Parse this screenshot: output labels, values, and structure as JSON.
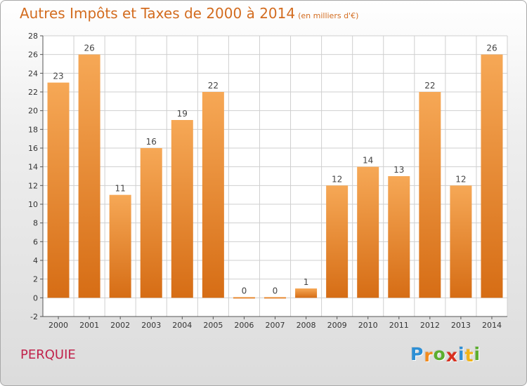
{
  "title": "Autres Impôts et Taxes de 2000 à 2014",
  "subtitle": "(en milliers d'€)",
  "location": "PERQUIE",
  "brand": {
    "letters": [
      "P",
      "r",
      "o",
      "x",
      "i",
      "t",
      "i"
    ],
    "colors": [
      "#2d8fd5",
      "#f28b1e",
      "#5cae2e",
      "#d8301f",
      "#2d8fd5",
      "#f0b418",
      "#5cae2e"
    ]
  },
  "colors": {
    "bar_light": "#f6a856",
    "bar_dark": "#d66d15",
    "title": "#d36c1f",
    "grid": "#cfcfcf"
  },
  "chart_data": {
    "type": "bar",
    "title": "Autres Impôts et Taxes de 2000 à 2014",
    "subtitle": "(en milliers d'€)",
    "categories": [
      "2000",
      "2001",
      "2002",
      "2003",
      "2004",
      "2005",
      "2006",
      "2007",
      "2008",
      "2009",
      "2010",
      "2011",
      "2012",
      "2013",
      "2014"
    ],
    "values": [
      23,
      26,
      11,
      16,
      19,
      22,
      0,
      0,
      1,
      12,
      14,
      13,
      22,
      12,
      26
    ],
    "data_labels": [
      "23",
      "26",
      "11",
      "16",
      "19",
      "22",
      "0",
      "0",
      "1",
      "12",
      "14",
      "13",
      "22",
      "12",
      "26"
    ],
    "yticks": [
      "-2",
      "0",
      "2",
      "4",
      "6",
      "8",
      "10",
      "12",
      "14",
      "16",
      "18",
      "20",
      "22",
      "24",
      "26",
      "28"
    ],
    "ylim": [
      -2,
      28
    ],
    "grid": true
  }
}
